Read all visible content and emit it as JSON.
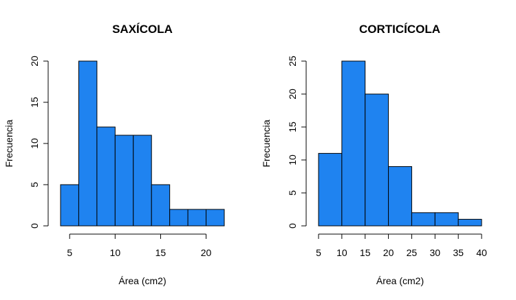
{
  "colors": {
    "bar_fill": "#1f83f0",
    "bar_stroke": "#000000",
    "axis": "#000000",
    "background": "#ffffff"
  },
  "chart_data": [
    {
      "type": "bar",
      "title": "SAXÍCOLA",
      "xlabel": "Área (cm2)",
      "ylabel": "Frecuencia",
      "bin_edges": [
        4,
        6,
        8,
        10,
        12,
        14,
        16,
        18,
        20,
        22
      ],
      "values": [
        5,
        20,
        12,
        11,
        11,
        5,
        2,
        2,
        2
      ],
      "xticks": [
        5,
        10,
        15,
        20
      ],
      "yticks": [
        0,
        5,
        10,
        15,
        20
      ],
      "xlim": [
        4,
        22
      ],
      "ylim": [
        0,
        20
      ],
      "grid": false,
      "legend": false
    },
    {
      "type": "bar",
      "title": "CORTICÍCOLA",
      "xlabel": "Área (cm2)",
      "ylabel": "Frecuencia",
      "bin_edges": [
        5,
        10,
        15,
        20,
        25,
        30,
        35,
        40
      ],
      "values": [
        11,
        25,
        20,
        9,
        2,
        2,
        1
      ],
      "xticks": [
        5,
        10,
        15,
        20,
        25,
        30,
        35,
        40
      ],
      "yticks": [
        0,
        5,
        10,
        15,
        20,
        25
      ],
      "xlim": [
        5,
        40
      ],
      "ylim": [
        0,
        25
      ],
      "grid": false,
      "legend": false
    }
  ]
}
